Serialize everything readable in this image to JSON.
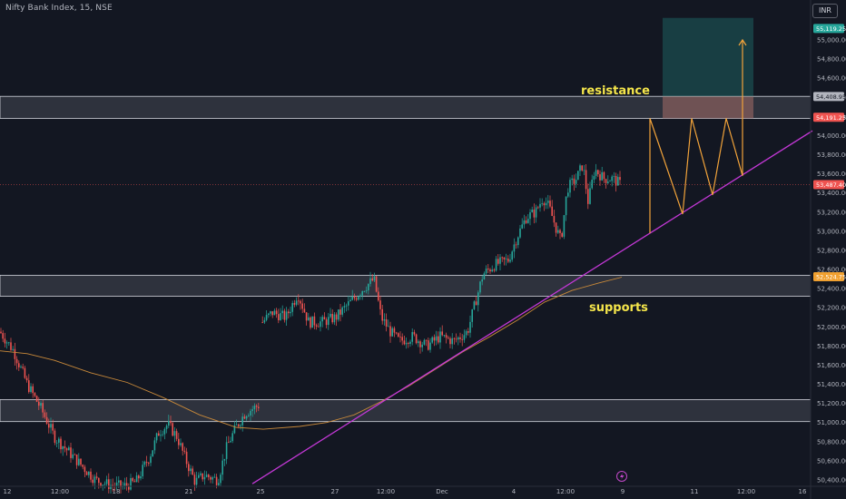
{
  "header": {
    "symbol_title": "Nifty Bank Index, 15, NSE",
    "currency": "INR"
  },
  "chart_data": {
    "type": "candlestick",
    "x_ticks": [
      "12",
      "12:00",
      "18",
      "21",
      "25",
      "27",
      "12:00",
      "Dec",
      "4",
      "12:00",
      "9",
      "11",
      "12:00",
      "16"
    ],
    "y_ticks": [
      50400,
      50600,
      50800,
      51000,
      51200,
      51400,
      51600,
      51800,
      52000,
      52200,
      52400,
      52600,
      52800,
      53000,
      53200,
      53400,
      53600,
      53800,
      54000,
      54200,
      54400,
      54600,
      54800,
      55000
    ],
    "y_tick_labels": [
      "50,400.00",
      "50,600.00",
      "50,800.00",
      "51,000.00",
      "51,200.00",
      "51,400.00",
      "51,600.00",
      "51,800.00",
      "52,000.00",
      "52,200.00",
      "52,400.00",
      "52,600.00",
      "52,800.00",
      "53,000.00",
      "53,200.00",
      "53,400.00",
      "53,600.00",
      "53,800.00",
      "54,000.00",
      "54,200.00",
      "54,400.00",
      "54,600.00",
      "54,800.00",
      "55,000.00"
    ],
    "ylim": [
      50330,
      55280
    ],
    "price_tags": [
      {
        "label": "55,119.25",
        "value": 55119.25,
        "color": "#26a69a"
      },
      {
        "label": "54,408.95",
        "value": 54408.95,
        "color": "#b2b5be"
      },
      {
        "label": "54,191.25",
        "value": 54191.25,
        "color": "#ef5350"
      },
      {
        "label": "53,487.40",
        "value": 53487.4,
        "color": "#ef5350"
      },
      {
        "label": "52,524.75",
        "value": 52524.75,
        "color": "#f0a030"
      }
    ],
    "zones": [
      {
        "top": 54410,
        "bottom": 54180
      },
      {
        "top": 52540,
        "bottom": 52320
      },
      {
        "top": 51240,
        "bottom": 51010
      }
    ],
    "close_series": [
      [
        0,
        51950
      ],
      [
        15,
        51750
      ],
      [
        30,
        51400
      ],
      [
        45,
        51150
      ],
      [
        60,
        50850
      ],
      [
        75,
        50700
      ],
      [
        90,
        50550
      ],
      [
        105,
        50400
      ],
      [
        120,
        50350
      ],
      [
        135,
        50330
      ],
      [
        150,
        50380
      ],
      [
        165,
        50650
      ],
      [
        175,
        50900
      ],
      [
        185,
        50980
      ],
      [
        195,
        50850
      ],
      [
        205,
        50600
      ],
      [
        215,
        50380
      ],
      [
        225,
        50450
      ],
      [
        240,
        50400
      ],
      [
        250,
        50750
      ],
      [
        260,
        50950
      ],
      [
        270,
        51100
      ],
      [
        285,
        51180
      ],
      [
        289,
        52050
      ],
      [
        300,
        52150
      ],
      [
        315,
        52100
      ],
      [
        328,
        52350
      ],
      [
        340,
        52050
      ],
      [
        355,
        52050
      ],
      [
        370,
        52100
      ],
      [
        385,
        52250
      ],
      [
        400,
        52400
      ],
      [
        412,
        52500
      ],
      [
        420,
        52100
      ],
      [
        430,
        51950
      ],
      [
        440,
        51850
      ],
      [
        455,
        51900
      ],
      [
        470,
        51800
      ],
      [
        485,
        51900
      ],
      [
        500,
        51850
      ],
      [
        515,
        51950
      ],
      [
        525,
        52300
      ],
      [
        532,
        52550
      ],
      [
        545,
        52650
      ],
      [
        560,
        52700
      ],
      [
        570,
        52950
      ],
      [
        580,
        53150
      ],
      [
        590,
        53200
      ],
      [
        598,
        53350
      ],
      [
        605,
        53250
      ],
      [
        612,
        53050
      ],
      [
        618,
        52900
      ],
      [
        625,
        53450
      ],
      [
        635,
        53550
      ],
      [
        642,
        53700
      ],
      [
        648,
        53300
      ],
      [
        655,
        53650
      ],
      [
        665,
        53550
      ],
      [
        675,
        53550
      ],
      [
        685,
        53480
      ]
    ],
    "ma_line": [
      [
        0,
        51750
      ],
      [
        30,
        51720
      ],
      [
        60,
        51650
      ],
      [
        100,
        51520
      ],
      [
        140,
        51420
      ],
      [
        180,
        51260
      ],
      [
        220,
        51080
      ],
      [
        260,
        50950
      ],
      [
        290,
        50930
      ],
      [
        330,
        50960
      ],
      [
        360,
        51000
      ],
      [
        390,
        51080
      ],
      [
        420,
        51220
      ],
      [
        450,
        51380
      ],
      [
        480,
        51560
      ],
      [
        510,
        51740
      ],
      [
        540,
        51900
      ],
      [
        570,
        52070
      ],
      [
        600,
        52260
      ],
      [
        630,
        52380
      ],
      [
        660,
        52460
      ],
      [
        685,
        52520
      ]
    ],
    "trendline": {
      "from": [
        278,
        50360
      ],
      "to": [
        895,
        54050
      ]
    },
    "projection_path": [
      [
        716,
        52980
      ],
      [
        716,
        54180
      ],
      [
        752,
        53180
      ],
      [
        762,
        54180
      ],
      [
        785,
        53380
      ],
      [
        800,
        54180
      ],
      [
        818,
        53580
      ],
      [
        818,
        55000
      ]
    ],
    "target_box": {
      "x1": 730,
      "x2": 830,
      "top": 55230,
      "bottom": 54180
    },
    "stop_box": {
      "x1": 730,
      "x2": 830,
      "top": 54410,
      "bottom": 54180
    },
    "annotations": [
      {
        "text": "resistance",
        "near": "resistance-zone"
      },
      {
        "text": "supports",
        "near": "support-zone"
      }
    ]
  }
}
